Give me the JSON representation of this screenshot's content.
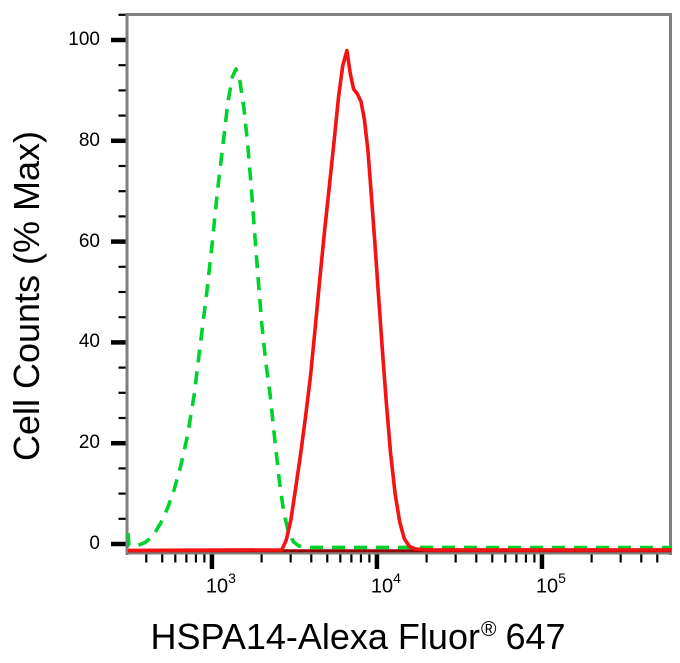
{
  "figure": {
    "background": "#ffffff",
    "frame_color": "#7f7f7f",
    "tick_color": "#000000"
  },
  "chart_data": {
    "type": "line",
    "description": "Flow cytometry overlay histogram with one green dashed peak and one red solid peak",
    "title": "",
    "xlabel": "HSPA14-Alexa Fluor® 647",
    "xlabel_parts": {
      "main": "HSPA14-Alexa Fluor",
      "registered_mark": "®",
      "suffix": "647"
    },
    "ylabel": "Cell Counts (% Max)",
    "xscale": "log",
    "xlim": [
      310,
      614000
    ],
    "ylim": [
      0,
      100
    ],
    "grid": false,
    "legend": "none",
    "x_major_ticks": [
      {
        "value": 1000,
        "base": "10",
        "exponent": "3"
      },
      {
        "value": 10000,
        "base": "10",
        "exponent": "4"
      },
      {
        "value": 100000,
        "base": "10",
        "exponent": "5"
      }
    ],
    "x_minor_ticks": "2-9 per decade",
    "y_major_ticks": [
      {
        "value": 0,
        "label": "0"
      },
      {
        "value": 20,
        "label": "20"
      },
      {
        "value": 40,
        "label": "40"
      },
      {
        "value": 60,
        "label": "60"
      },
      {
        "value": 80,
        "label": "80"
      },
      {
        "value": 100,
        "label": "100"
      }
    ],
    "y_minor_tick_step": 5,
    "baseline_trace_color": "#9b0000",
    "series": [
      {
        "name": "green-dashed",
        "line_style": "dashed",
        "color": "#00d22c",
        "peak_x": 1400,
        "peak_y": 94,
        "points": [
          [
            310,
            3.0
          ],
          [
            314,
            0.6
          ],
          [
            350,
            0.5
          ],
          [
            395,
            1.2
          ],
          [
            440,
            2.5
          ],
          [
            490,
            5
          ],
          [
            540,
            8
          ],
          [
            590,
            11.5
          ],
          [
            645,
            16
          ],
          [
            710,
            22
          ],
          [
            780,
            30
          ],
          [
            850,
            40
          ],
          [
            930,
            50
          ],
          [
            1005,
            60
          ],
          [
            1080,
            70
          ],
          [
            1165,
            79
          ],
          [
            1250,
            87.5
          ],
          [
            1330,
            92.5
          ],
          [
            1400,
            94
          ],
          [
            1480,
            91.5
          ],
          [
            1560,
            86.5
          ],
          [
            1645,
            79.5
          ],
          [
            1725,
            71.5
          ],
          [
            1815,
            62
          ],
          [
            1905,
            53
          ],
          [
            2005,
            44
          ],
          [
            2120,
            36.5
          ],
          [
            2255,
            30
          ],
          [
            2400,
            21.5
          ],
          [
            2555,
            13.5
          ],
          [
            2725,
            7
          ],
          [
            2910,
            3.2
          ],
          [
            3120,
            1.3
          ],
          [
            3360,
            0.5
          ],
          [
            3700,
            0.2
          ],
          [
            610000,
            0.15
          ]
        ]
      },
      {
        "name": "red-solid",
        "line_style": "solid",
        "color": "#f41212",
        "peak_x": 6580,
        "peak_y": 98,
        "points": [
          [
            310,
            0
          ],
          [
            2650,
            0.1
          ],
          [
            2820,
            2
          ],
          [
            3010,
            6
          ],
          [
            3210,
            12
          ],
          [
            3450,
            19
          ],
          [
            3700,
            26.5
          ],
          [
            3950,
            34
          ],
          [
            4210,
            43
          ],
          [
            4500,
            53
          ],
          [
            4810,
            62.5
          ],
          [
            5150,
            71.5
          ],
          [
            5510,
            80.5
          ],
          [
            5860,
            89
          ],
          [
            6200,
            95
          ],
          [
            6580,
            98
          ],
          [
            6900,
            93.5
          ],
          [
            7210,
            90.5
          ],
          [
            7610,
            89.5
          ],
          [
            8010,
            88
          ],
          [
            8400,
            84.5
          ],
          [
            8810,
            78.5
          ],
          [
            9230,
            70
          ],
          [
            9700,
            60.5
          ],
          [
            10220,
            50
          ],
          [
            10780,
            39.5
          ],
          [
            11400,
            29
          ],
          [
            12100,
            19
          ],
          [
            12900,
            11
          ],
          [
            13750,
            5.5
          ],
          [
            14650,
            2.3
          ],
          [
            15700,
            0.8
          ],
          [
            17000,
            0.3
          ],
          [
            20000,
            0.1
          ],
          [
            610000,
            0.1
          ]
        ]
      }
    ]
  }
}
